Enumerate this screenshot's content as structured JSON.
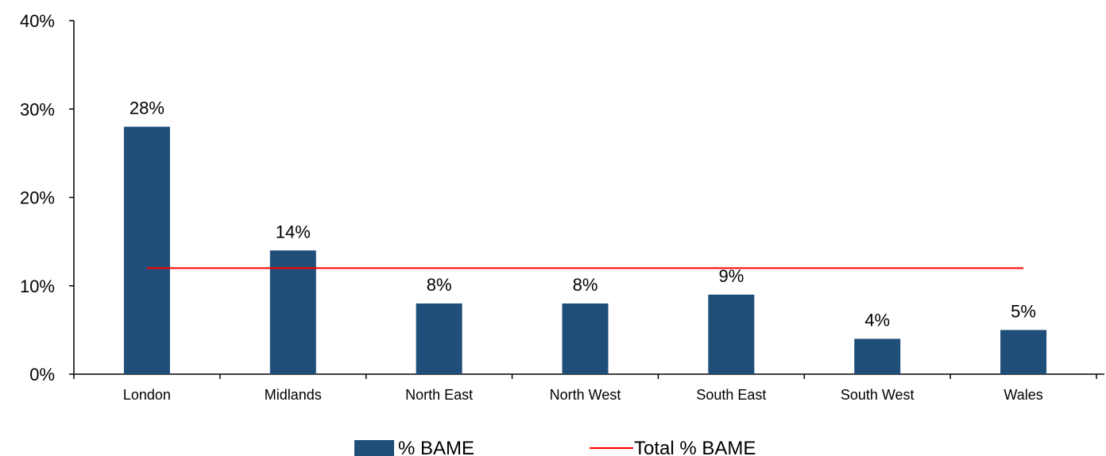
{
  "chart_data": {
    "type": "bar",
    "categories": [
      "London",
      "Midlands",
      "North East",
      "North West",
      "South East",
      "South West",
      "Wales"
    ],
    "series": [
      {
        "name": "% BAME",
        "type": "bar",
        "values": [
          28,
          14,
          8,
          8,
          9,
          4,
          5
        ],
        "color": "#1F4E79"
      },
      {
        "name": "Total % BAME",
        "type": "line",
        "values": [
          12,
          12,
          12,
          12,
          12,
          12,
          12
        ],
        "color": "#FF0000"
      }
    ],
    "data_labels": [
      "28%",
      "14%",
      "8%",
      "8%",
      "9%",
      "4%",
      "5%"
    ],
    "ylim": [
      0,
      40
    ],
    "yticks": [
      0,
      10,
      20,
      30,
      40
    ],
    "ytick_labels": [
      "0%",
      "10%",
      "20%",
      "30%",
      "40%"
    ],
    "grid": false,
    "legend_position": "bottom",
    "title": "",
    "xlabel": "",
    "ylabel": ""
  }
}
